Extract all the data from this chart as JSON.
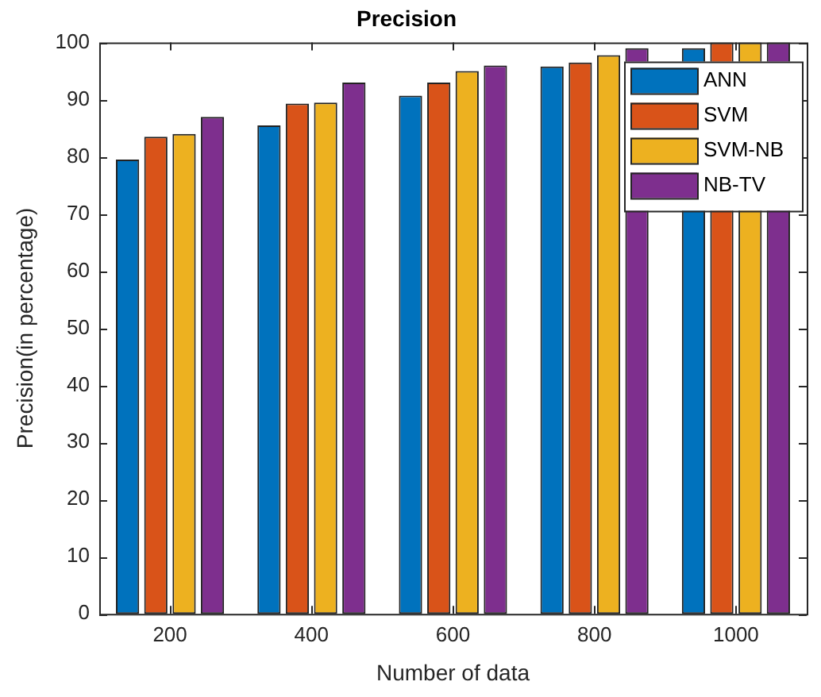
{
  "chart_data": {
    "type": "bar",
    "title": "Precision",
    "xlabel": "Number of data",
    "ylabel": "Precision(in percentage)",
    "categories": [
      "200",
      "400",
      "600",
      "800",
      "1000"
    ],
    "series": [
      {
        "name": "ANN",
        "color": "#0072bd",
        "values": [
          79.5,
          85.5,
          90.7,
          95.8,
          99
        ]
      },
      {
        "name": "SVM",
        "color": "#d95319",
        "values": [
          83.5,
          89.3,
          93,
          96.5,
          100
        ]
      },
      {
        "name": "SVM-NB",
        "color": "#edb120",
        "values": [
          84,
          89.5,
          95,
          97.8,
          100
        ]
      },
      {
        "name": "NB-TV",
        "color": "#7e2f8e",
        "values": [
          87,
          93,
          96,
          99,
          100
        ]
      }
    ],
    "ylim": [
      0,
      100
    ],
    "yticks": [
      0,
      10,
      20,
      30,
      40,
      50,
      60,
      70,
      80,
      90,
      100
    ],
    "grid": false,
    "legend": "top right"
  }
}
